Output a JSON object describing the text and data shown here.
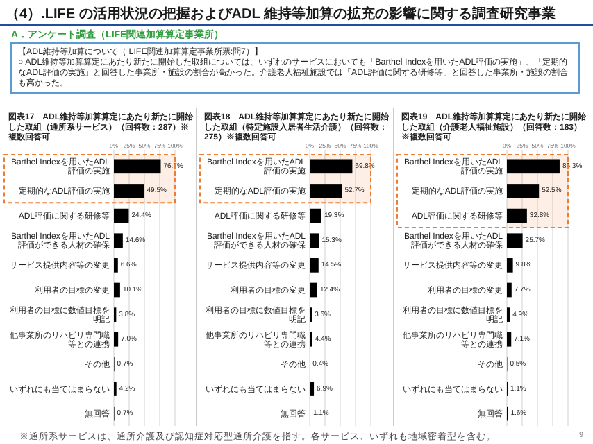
{
  "chart_data": [
    {
      "type": "other",
      "title": "（4）.LIFE の活用状況の把握およびADL 維持等加算の拡充の影響に関する調査研究事業",
      "subtitle": "A．アンケート調査（LIFE関連加算算定事業所）",
      "annotations": [
        "【ADL維持等加算について（ LIFE関連加算算定事業所票:問7）】",
        "○ ADL維持等加算算定にあたり新たに開始した取組については、いずれのサービスにおいても「Barthel Indexを用いたADL評価の実施」、「定期的なADL評価の実施」と回答した事業所・施設の割合が高かった。介護老人福祉施設では「ADL評価に関する研修等」と回答した事業所・施設の割合も高かった。"
      ]
    },
    {
      "type": "bar",
      "orientation": "horizontal",
      "title": "図表17　ADL維持等加算算定にあたり新たに開始した取組（通所系サービス）（回答数：287）※複数回答可",
      "categories": [
        "Barthel Indexを用いたADL評価の実施",
        "定期的なADL評価の実施",
        "ADL評価に関する研修等",
        "Barthel Indexを用いたADL評価ができる人材の確保",
        "サービス提供内容等の変更",
        "利用者の目標の変更",
        "利用者の目標に数値目標を明記",
        "他事業所のリハビリ専門職等との連携",
        "その他",
        "いずれにも当てはまらない",
        "無回答"
      ],
      "values": [
        76.7,
        49.5,
        24.4,
        14.6,
        6.6,
        10.1,
        3.8,
        7.0,
        0.7,
        4.2,
        0.7
      ],
      "value_labels": [
        "76.7%",
        "49.5%",
        "24.4%",
        "14.6%",
        "6.6%",
        "10.1%",
        "3.8%",
        "7.0%",
        "0.7%",
        "4.2%",
        "0.7%"
      ],
      "color": "#000000",
      "xlim": [
        0,
        100
      ],
      "xticks": [
        {
          "value": 0,
          "label": "0%"
        },
        {
          "value": 25,
          "label": "25%"
        },
        {
          "value": 50,
          "label": "50%"
        },
        {
          "value": 75,
          "label": "75%"
        },
        {
          "value": 100,
          "label": "100%"
        }
      ],
      "grid": "x",
      "bands": [
        {
          "axis": "y",
          "from": "Barthel Indexを用いたADL評価の実施",
          "to": "定期的なADL評価の実施",
          "color": "#ed7d31"
        }
      ]
    },
    {
      "type": "bar",
      "orientation": "horizontal",
      "title": "図表18　ADL維持等加算算定にあたり新たに開始した取組（特定施設入居者生活介護）（回答数：275）※複数回答可",
      "categories": [
        "Barthel Indexを用いたADL評価の実施",
        "定期的なADL評価の実施",
        "ADL評価に関する研修等",
        "Barthel Indexを用いたADL評価ができる人材の確保",
        "サービス提供内容等の変更",
        "利用者の目標の変更",
        "利用者の目標に数値目標を明記",
        "他事業所のリハビリ専門職等との連携",
        "その他",
        "いずれにも当てはまらない",
        "無回答"
      ],
      "values": [
        69.8,
        52.7,
        19.3,
        15.3,
        14.5,
        12.4,
        3.6,
        4.4,
        0.4,
        6.9,
        1.1
      ],
      "value_labels": [
        "69.8%",
        "52.7%",
        "19.3%",
        "15.3%",
        "14.5%",
        "12.4%",
        "3.6%",
        "4.4%",
        "0.4%",
        "6.9%",
        "1.1%"
      ],
      "color": "#000000",
      "xlim": [
        0,
        100
      ],
      "xticks": [
        {
          "value": 0,
          "label": "0%"
        },
        {
          "value": 25,
          "label": "25%"
        },
        {
          "value": 50,
          "label": "50%"
        },
        {
          "value": 75,
          "label": "75%"
        },
        {
          "value": 100,
          "label": "100%"
        }
      ],
      "grid": "x",
      "bands": [
        {
          "axis": "y",
          "from": "Barthel Indexを用いたADL評価の実施",
          "to": "定期的なADL評価の実施",
          "color": "#ed7d31"
        }
      ]
    },
    {
      "type": "bar",
      "orientation": "horizontal",
      "title": "図表19　ADL維持等加算算定にあたり新たに開始した取組（介護老人福祉施設）（回答数：183）※複数回答可",
      "categories": [
        "Barthel Indexを用いたADL評価の実施",
        "定期的なADL評価の実施",
        "ADL評価に関する研修等",
        "Barthel Indexを用いたADL評価ができる人材の確保",
        "サービス提供内容等の変更",
        "利用者の目標の変更",
        "利用者の目標に数値目標を明記",
        "他事業所のリハビリ専門職等との連携",
        "その他",
        "いずれにも当てはまらない",
        "無回答"
      ],
      "values": [
        86.3,
        52.5,
        32.8,
        25.7,
        9.8,
        7.7,
        4.9,
        7.1,
        0.5,
        1.1,
        1.6
      ],
      "value_labels": [
        "86.3%",
        "52.5%",
        "32.8%",
        "25.7%",
        "9.8%",
        "7.7%",
        "4.9%",
        "7.1%",
        "0.5%",
        "1.1%",
        "1.6%"
      ],
      "color": "#000000",
      "xlim": [
        0,
        100
      ],
      "xticks": [
        {
          "value": 0,
          "label": "0%"
        },
        {
          "value": 25,
          "label": "25%"
        },
        {
          "value": 50,
          "label": "50%"
        },
        {
          "value": 75,
          "label": "75%"
        },
        {
          "value": 100,
          "label": "100%"
        }
      ],
      "grid": "x",
      "bands": [
        {
          "axis": "y",
          "from": "Barthel Indexを用いたADL評価の実施",
          "to": "ADL評価に関する研修等",
          "color": "#ed7d31"
        }
      ]
    },
    {
      "type": "other",
      "annotations": [
        "※通所系サービスは、通所介護及び認知症対応型通所介護を指す。各サービス、いずれも地域密着型を含む。",
        "9"
      ]
    }
  ]
}
